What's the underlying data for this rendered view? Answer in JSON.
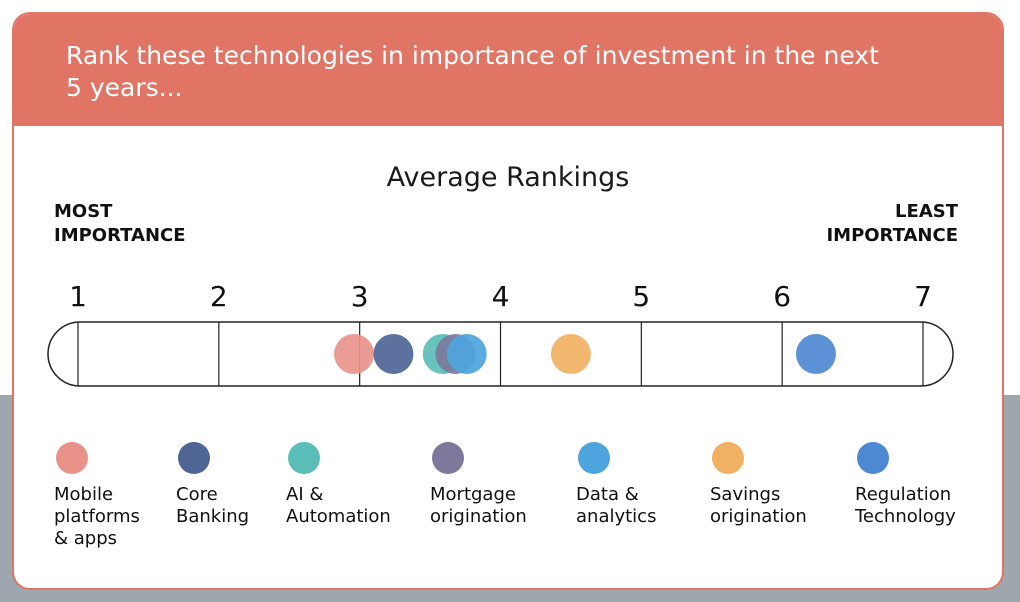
{
  "header": {
    "title": "Rank these technologies in importance of investment in the next 5 years..."
  },
  "chart_data": {
    "type": "scatter",
    "title": "Average Rankings",
    "left_label": "MOST IMPORTANCE",
    "right_label": "LEAST IMPORTANCE",
    "xlim": [
      1,
      7
    ],
    "ticks": [
      "1",
      "2",
      "3",
      "4",
      "5",
      "6",
      "7"
    ],
    "series": [
      {
        "name": "Mobile platforms & apps",
        "value": 2.96,
        "color": "#e8928a"
      },
      {
        "name": "Core Banking",
        "value": 3.24,
        "color": "#4e6596"
      },
      {
        "name": "AI & Automation",
        "value": 3.59,
        "color": "#5bbdb8"
      },
      {
        "name": "Mortgage origination",
        "value": 3.68,
        "color": "#7c799c"
      },
      {
        "name": "Data & analytics",
        "value": 3.76,
        "color": "#4ea4dc"
      },
      {
        "name": "Savings origination",
        "value": 4.5,
        "color": "#f0b163"
      },
      {
        "name": "Regulation Technology",
        "value": 6.24,
        "color": "#4e88d2"
      }
    ]
  },
  "legend": {
    "items": [
      {
        "label": "Mobile\nplatforms\n& apps",
        "color": "#e8928a",
        "icon": "circle-icon"
      },
      {
        "label": "Core\nBanking",
        "color": "#4e6596",
        "icon": "circle-icon"
      },
      {
        "label": "AI &\nAutomation",
        "color": "#5bbdb8",
        "icon": "circle-icon"
      },
      {
        "label": "Mortgage\norigination",
        "color": "#7c799c",
        "icon": "circle-icon"
      },
      {
        "label": "Data &\nanalytics",
        "color": "#4ea4dc",
        "icon": "circle-icon"
      },
      {
        "label": "Savings\norigination",
        "color": "#f0b163",
        "icon": "circle-icon"
      },
      {
        "label": "Regulation\nTechnology",
        "color": "#4e88d2",
        "icon": "circle-icon"
      }
    ]
  },
  "colors": {
    "accent": "#e07566",
    "background_band": "#9ea7ad"
  }
}
